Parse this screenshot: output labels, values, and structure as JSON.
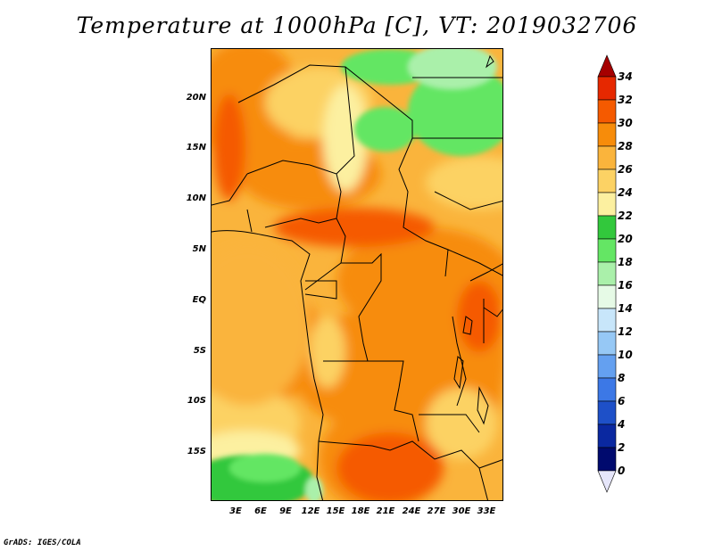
{
  "title": "Temperature at 1000hPa [C], VT: 2019032706",
  "credit": "GrADS: IGES/COLA",
  "map": {
    "lat_labels": [
      "20N",
      "15N",
      "10N",
      "5N",
      "EQ",
      "5S",
      "10S",
      "15S"
    ],
    "lon_labels": [
      "3E",
      "6E",
      "9E",
      "12E",
      "15E",
      "18E",
      "21E",
      "24E",
      "27E",
      "30E",
      "33E"
    ]
  },
  "colorbar": {
    "labels": [
      "34",
      "32",
      "30",
      "28",
      "26",
      "24",
      "22",
      "20",
      "18",
      "16",
      "14",
      "12",
      "10",
      "8",
      "6",
      "4",
      "2",
      "0"
    ],
    "colors": [
      "#a50000",
      "#e62800",
      "#f55a00",
      "#f78c0a",
      "#fab43c",
      "#fcd264",
      "#fcf0a0",
      "#32c83c",
      "#64e664",
      "#aaf0aa",
      "#e6fae6",
      "#c8e6fa",
      "#96c8f5",
      "#64a0f0",
      "#3c78e6",
      "#1e50c8",
      "#0a28a0",
      "#000a6e",
      "#e6e6fa"
    ]
  }
}
